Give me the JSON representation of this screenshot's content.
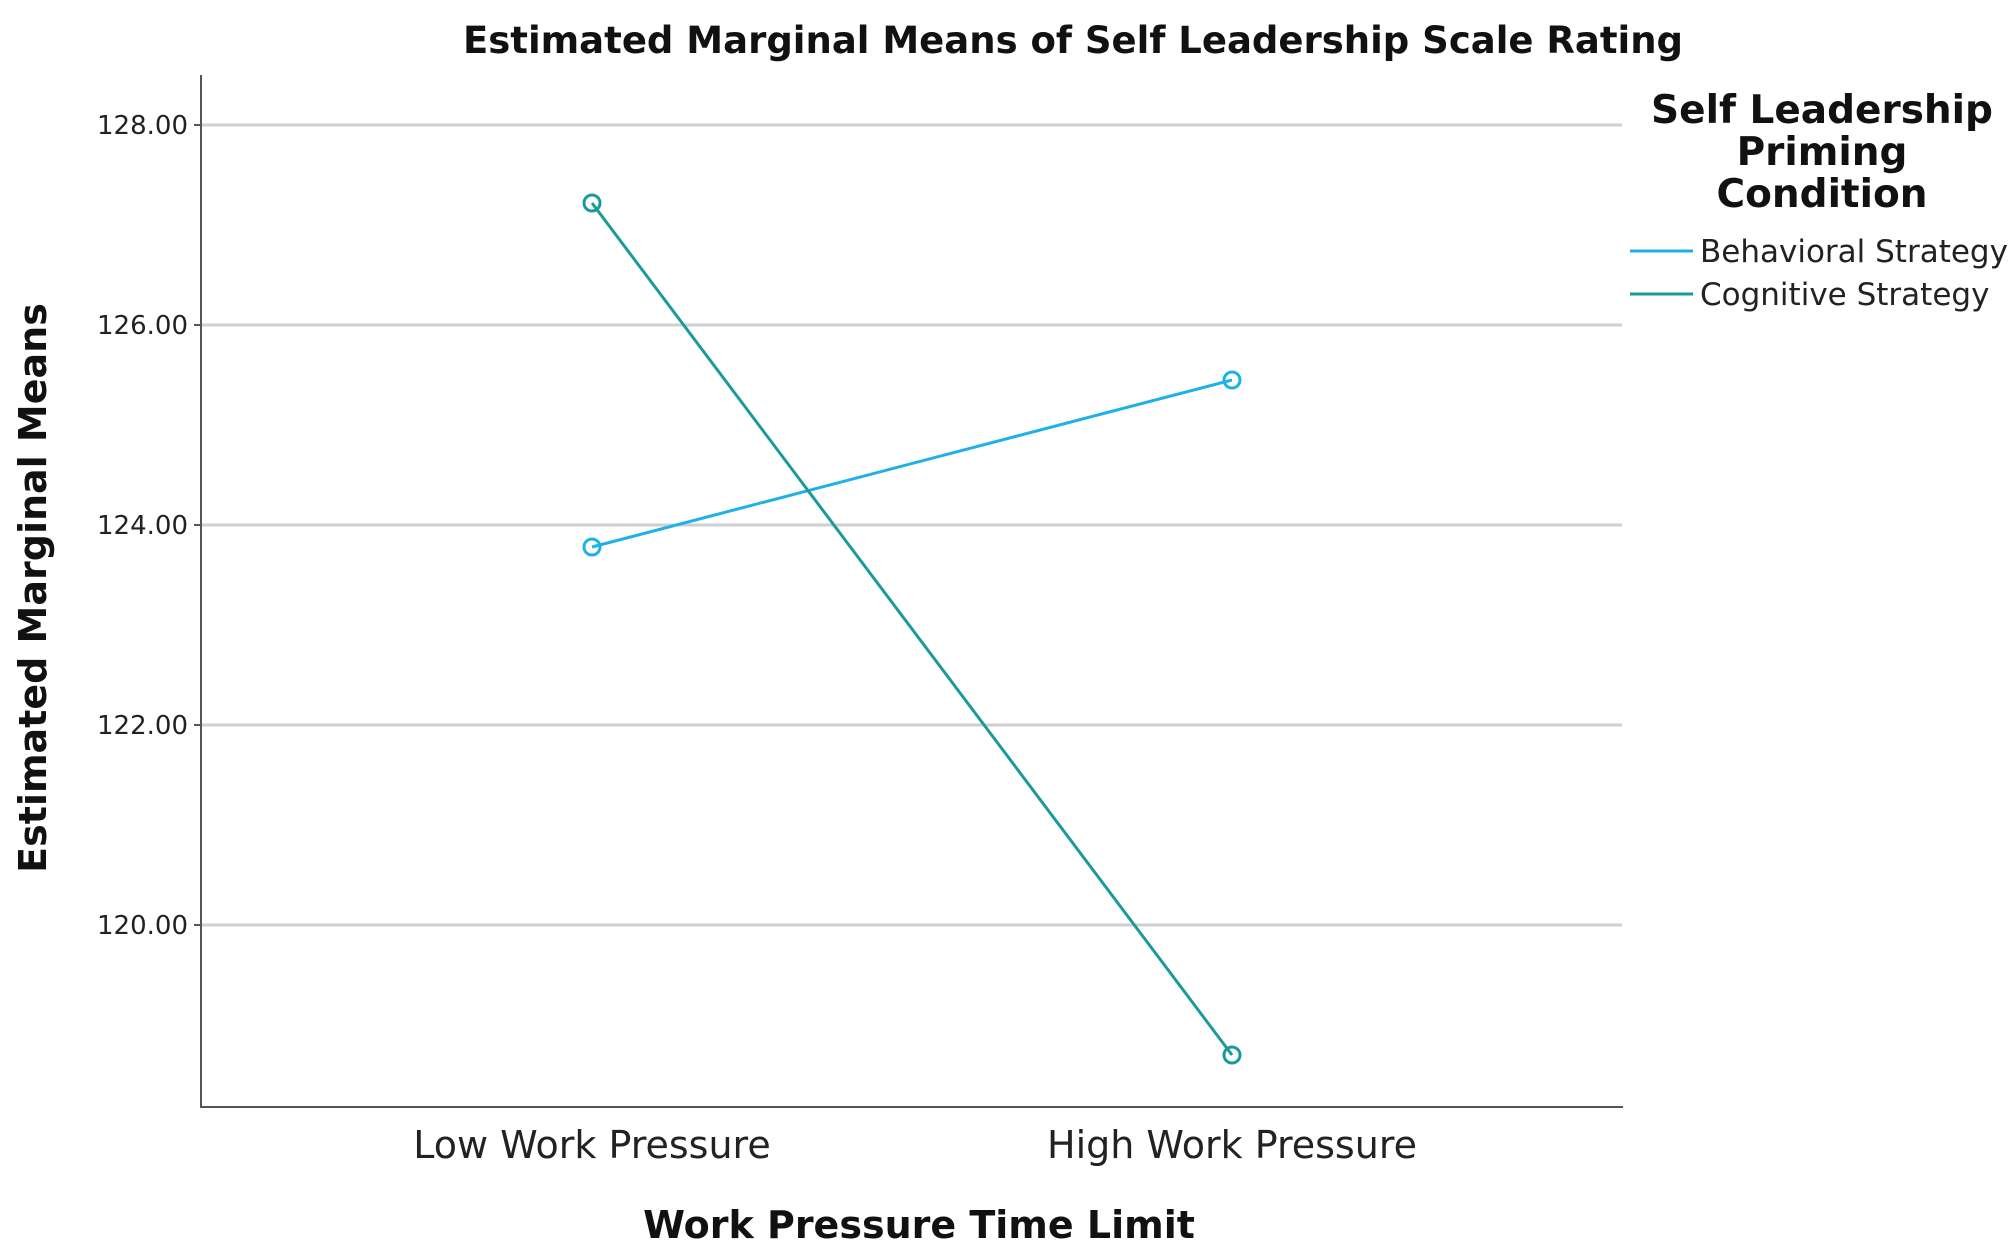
{
  "chart_data": {
    "type": "line",
    "title": "Estimated Marginal Means of Self Leadership Scale Rating",
    "xlabel": "Work Pressure Time Limit",
    "ylabel": "Estimated Marginal Means",
    "categories": [
      "Low Work Pressure",
      "High Work Pressure"
    ],
    "ylim": [
      118.1,
      128.5
    ],
    "yticks": [
      120,
      122,
      124,
      126,
      128
    ],
    "ytick_labels": [
      "120.00",
      "122.00",
      "124.00",
      "126.00",
      "128.00"
    ],
    "grid": true,
    "legend": {
      "title_lines": [
        "Self Leadership",
        "Priming",
        "Condition"
      ],
      "position": "right"
    },
    "series": [
      {
        "name": "Behavioral Strategy",
        "values": [
          123.78,
          125.45
        ],
        "color": "#1fb1e6"
      },
      {
        "name": "Cognitive Strategy",
        "values": [
          127.22,
          118.7
        ],
        "color": "#1b9a9a"
      }
    ]
  }
}
